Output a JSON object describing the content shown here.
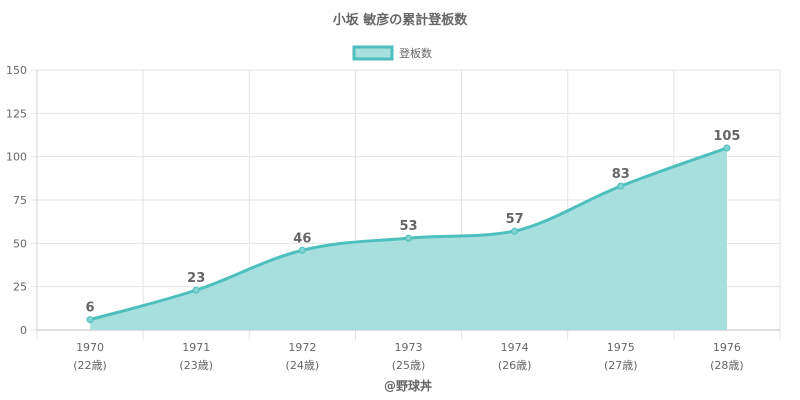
{
  "chart_data": {
    "type": "area",
    "title": "小坂 敏彦の累計登板数",
    "categories": [
      "1970",
      "1971",
      "1972",
      "1973",
      "1974",
      "1975",
      "1976"
    ],
    "category_sublabels": [
      "(22歳)",
      "(23歳)",
      "(24歳)",
      "(25歳)",
      "(26歳)",
      "(27歳)",
      "(28歳)"
    ],
    "series": [
      {
        "name": "登板数",
        "values": [
          6,
          23,
          46,
          53,
          57,
          83,
          105
        ]
      }
    ],
    "ylim": [
      0,
      150
    ],
    "yticks": [
      0,
      25,
      50,
      75,
      100,
      125,
      150
    ],
    "grid": true,
    "legend": "top-center",
    "xlabel": "",
    "ylabel": "",
    "colors": {
      "line": "#4dbfbc",
      "fill": "#a6dfde",
      "grid": "#e5e5e5",
      "text": "#666666"
    }
  },
  "credit": "@野球丼"
}
